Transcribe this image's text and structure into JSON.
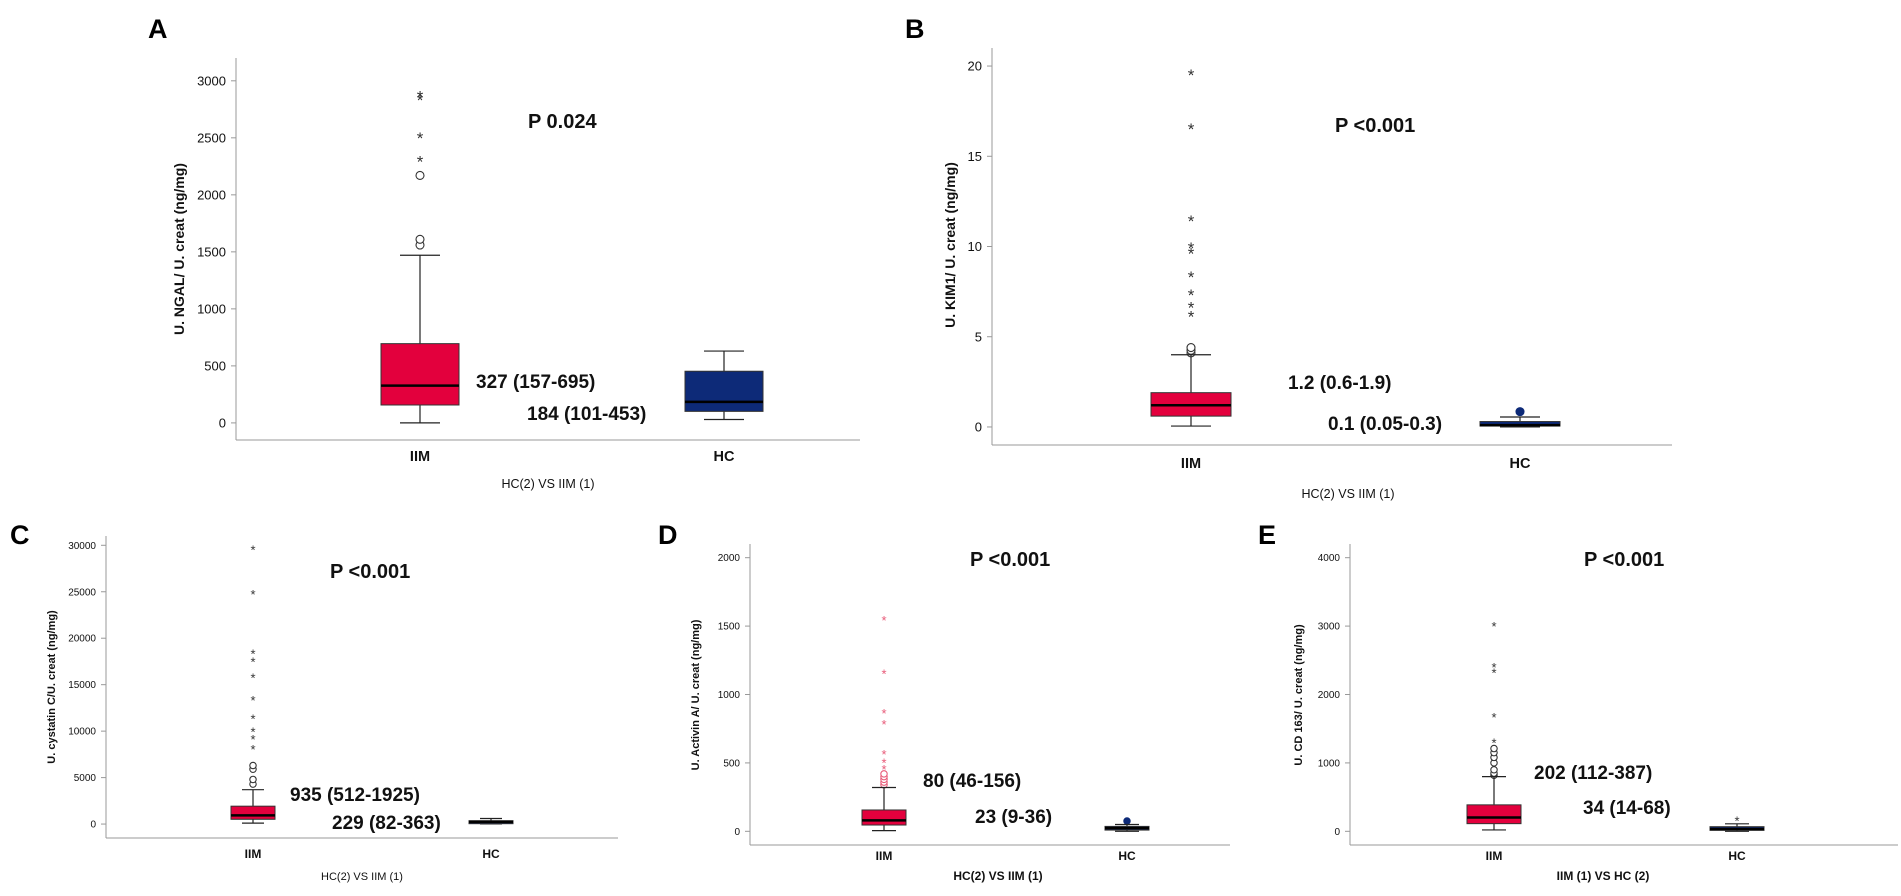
{
  "colors": {
    "iim_box": "#E3003D",
    "hc_box": "#0D2A78",
    "outlier_red": "#E85A78",
    "axis": "#999999",
    "text": "#111111"
  },
  "chart_data": [
    {
      "panel": "A",
      "type": "box",
      "ylabel": "U. NGAL/ U. creat (ng/mg)",
      "xlabel": "HC(2) VS IIM (1)",
      "ylim": [
        -150,
        3200
      ],
      "yticks": [
        0,
        500,
        1000,
        1500,
        2000,
        2500,
        3000
      ],
      "ytick_labels": [
        "0",
        "500",
        "1000",
        "1500",
        "2000",
        "2500",
        "3000"
      ],
      "p_value": "P 0.024",
      "groups": [
        {
          "label": "IIM",
          "color_key": "iim_box",
          "q1": 157,
          "median": 327,
          "q3": 695,
          "whisker_low": 0,
          "whisker_high": 1470,
          "circles": [
            1560,
            1610,
            2170
          ],
          "stars": [
            2320,
            2530,
            2860,
            2890
          ],
          "annotation": "327 (157-695)"
        },
        {
          "label": "HC",
          "color_key": "hc_box",
          "q1": 101,
          "median": 184,
          "q3": 453,
          "whisker_low": 30,
          "whisker_high": 630,
          "circles": [],
          "stars": [],
          "annotation": "184 (101-453)"
        }
      ]
    },
    {
      "panel": "B",
      "type": "box",
      "ylabel": "U. KIM1/ U. creat (ng/mg)",
      "xlabel": "HC(2) VS IIM (1)",
      "ylim": [
        -1,
        21
      ],
      "yticks": [
        0,
        5,
        10,
        15,
        20
      ],
      "ytick_labels": [
        "0",
        "5",
        "10",
        "15",
        "20"
      ],
      "p_value": "P <0.001",
      "groups": [
        {
          "label": "IIM",
          "color_key": "iim_box",
          "q1": 0.6,
          "median": 1.2,
          "q3": 1.9,
          "whisker_low": 0.05,
          "whisker_high": 4.0,
          "circles": [
            4.1,
            4.25,
            4.4
          ],
          "stars": [
            6.3,
            6.8,
            7.5,
            8.5,
            9.8,
            10.1,
            11.6,
            16.7,
            19.7
          ],
          "annotation": "1.2 (0.6-1.9)"
        },
        {
          "label": "HC",
          "color_key": "hc_box",
          "q1": 0.05,
          "median": 0.1,
          "q3": 0.3,
          "whisker_low": 0.0,
          "whisker_high": 0.55,
          "circles": [
            0.85
          ],
          "stars": [],
          "annotation": "0.1 (0.05-0.3)"
        }
      ]
    },
    {
      "panel": "C",
      "type": "box",
      "ylabel": "U. cystatin C/U. creat (ng/mg)",
      "xlabel": "HC(2) VS IIM (1)",
      "ylim": [
        -1500,
        31000
      ],
      "yticks": [
        0,
        5000,
        10000,
        15000,
        20000,
        25000,
        30000
      ],
      "ytick_labels": [
        "0",
        "5000",
        "10000",
        "15000",
        "20000",
        "25000",
        "30000"
      ],
      "p_value": "P <0.001",
      "groups": [
        {
          "label": "IIM",
          "color_key": "iim_box",
          "q1": 512,
          "median": 935,
          "q3": 1925,
          "whisker_low": 100,
          "whisker_high": 3700,
          "circles": [
            4300,
            4800,
            5900,
            6300
          ],
          "stars": [
            8300,
            9400,
            10200,
            11600,
            13600,
            16000,
            17700,
            18600,
            25000,
            29800
          ],
          "annotation": "935 (512-1925)"
        },
        {
          "label": "HC",
          "color_key": "hc_box",
          "q1": 82,
          "median": 229,
          "q3": 363,
          "whisker_low": 20,
          "whisker_high": 600,
          "circles": [],
          "stars": [],
          "annotation": "229 (82-363)"
        }
      ]
    },
    {
      "panel": "D",
      "type": "box",
      "ylabel": "U. Activin A/ U. creat (ng/mg)",
      "xlabel": "HC(2) VS IIM (1)",
      "ylim": [
        -100,
        2100
      ],
      "yticks": [
        0,
        500,
        1000,
        1500,
        2000
      ],
      "ytick_labels": [
        "0",
        "500",
        "1000",
        "1500",
        "2000"
      ],
      "p_value": "P <0.001",
      "groups": [
        {
          "label": "IIM",
          "color_key": "iim_box",
          "q1": 46,
          "median": 80,
          "q3": 156,
          "whisker_low": 5,
          "whisker_high": 320,
          "circles": [
            340,
            360,
            380,
            400,
            420
          ],
          "stars": [
            470,
            520,
            580,
            800,
            880,
            1170,
            1560
          ],
          "annotation": "80 (46-156)"
        },
        {
          "label": "HC",
          "color_key": "hc_box",
          "q1": 9,
          "median": 23,
          "q3": 36,
          "whisker_low": 0,
          "whisker_high": 50,
          "circles": [
            75
          ],
          "stars": [],
          "annotation": "23 (9-36)"
        }
      ]
    },
    {
      "panel": "E",
      "type": "box",
      "ylabel": "U. CD 163/ U. creat (ng/mg)",
      "xlabel": "IIM (1) VS HC (2)",
      "ylim": [
        -200,
        4200
      ],
      "yticks": [
        0,
        1000,
        2000,
        3000,
        4000
      ],
      "ytick_labels": [
        "0",
        "1000",
        "2000",
        "3000",
        "4000"
      ],
      "p_value": "P <0.001",
      "groups": [
        {
          "label": "IIM",
          "color_key": "iim_box",
          "q1": 112,
          "median": 202,
          "q3": 387,
          "whisker_low": 20,
          "whisker_high": 800,
          "circles": [
            820,
            850,
            900,
            1000,
            1080,
            1150,
            1210
          ],
          "stars": [
            1330,
            1700,
            2350,
            2430,
            3030
          ],
          "annotation": "202 (112-387)"
        },
        {
          "label": "HC",
          "color_key": "hc_box",
          "q1": 14,
          "median": 34,
          "q3": 68,
          "whisker_low": 0,
          "whisker_high": 110,
          "circles": [],
          "stars": [
            190
          ],
          "annotation": "34 (14-68)"
        }
      ]
    }
  ]
}
